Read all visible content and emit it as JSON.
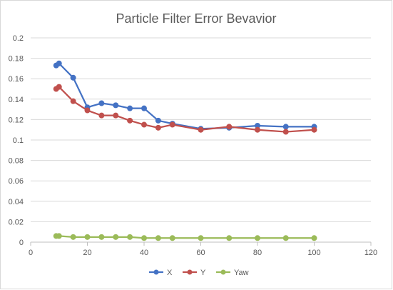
{
  "chart_data": {
    "type": "line",
    "title": "Particle Filter Error Bevavior",
    "xlabel": "",
    "ylabel": "",
    "xlim": [
      0,
      120
    ],
    "ylim": [
      0,
      0.2
    ],
    "x_ticks": [
      "0",
      "20",
      "40",
      "60",
      "80",
      "100",
      "120"
    ],
    "y_ticks": [
      "0",
      "0.02",
      "0.04",
      "0.06",
      "0.08",
      "0.1",
      "0.12",
      "0.14",
      "0.16",
      "0.18",
      "0.2"
    ],
    "grid": true,
    "legend_position": "bottom",
    "series": [
      {
        "name": "X",
        "color": "#4472C4",
        "points": [
          [
            9,
            0.173
          ],
          [
            10,
            0.175
          ],
          [
            15,
            0.161
          ],
          [
            20,
            0.132
          ],
          [
            25,
            0.136
          ],
          [
            30,
            0.134
          ],
          [
            35,
            0.131
          ],
          [
            40,
            0.131
          ],
          [
            45,
            0.119
          ],
          [
            50,
            0.116
          ],
          [
            60,
            0.111
          ],
          [
            70,
            0.112
          ],
          [
            80,
            0.114
          ],
          [
            90,
            0.113
          ],
          [
            100,
            0.113
          ]
        ]
      },
      {
        "name": "Y",
        "color": "#C0504D",
        "points": [
          [
            9,
            0.15
          ],
          [
            10,
            0.152
          ],
          [
            15,
            0.138
          ],
          [
            20,
            0.129
          ],
          [
            25,
            0.124
          ],
          [
            30,
            0.124
          ],
          [
            35,
            0.119
          ],
          [
            40,
            0.115
          ],
          [
            45,
            0.112
          ],
          [
            50,
            0.115
          ],
          [
            60,
            0.11
          ],
          [
            70,
            0.113
          ],
          [
            80,
            0.11
          ],
          [
            90,
            0.108
          ],
          [
            100,
            0.11
          ]
        ]
      },
      {
        "name": "Yaw",
        "color": "#9BBB59",
        "points": [
          [
            9,
            0.006
          ],
          [
            10,
            0.006
          ],
          [
            15,
            0.005
          ],
          [
            20,
            0.005
          ],
          [
            25,
            0.005
          ],
          [
            30,
            0.005
          ],
          [
            35,
            0.005
          ],
          [
            40,
            0.004
          ],
          [
            45,
            0.004
          ],
          [
            50,
            0.004
          ],
          [
            60,
            0.004
          ],
          [
            70,
            0.004
          ],
          [
            80,
            0.004
          ],
          [
            90,
            0.004
          ],
          [
            100,
            0.004
          ]
        ]
      }
    ]
  }
}
